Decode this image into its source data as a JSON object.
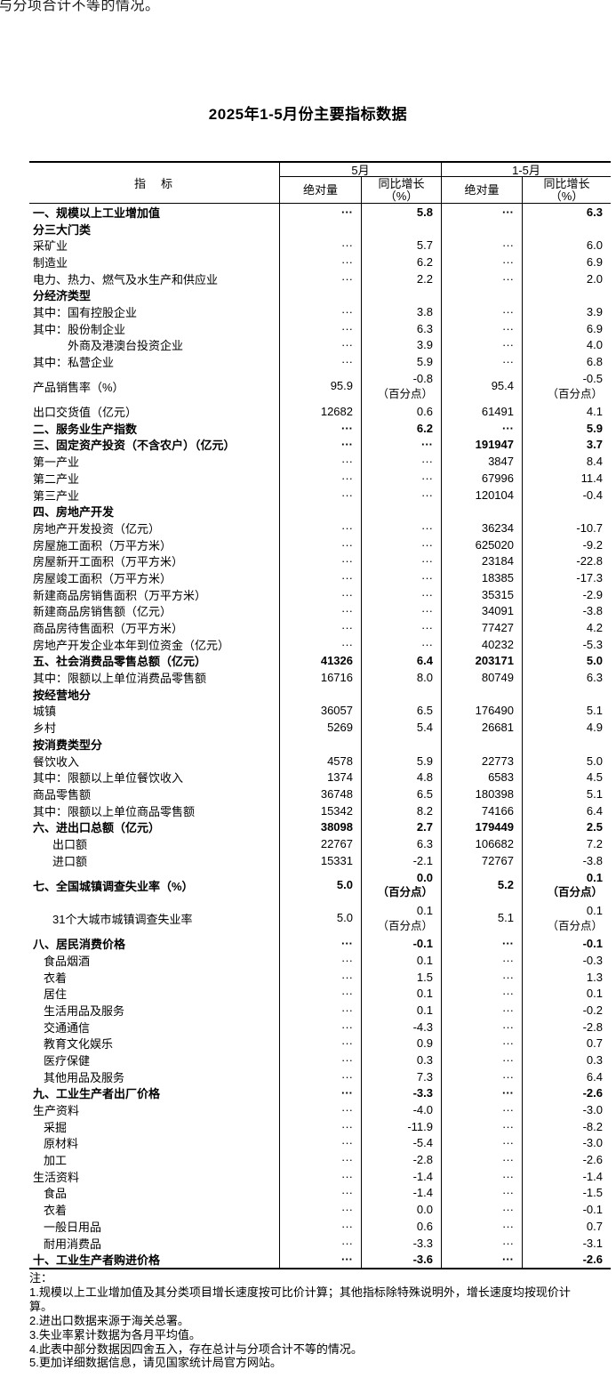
{
  "top_partial_text": "与分项合计不等的情况。",
  "title": "2025年1-5月份主要指标数据",
  "table": {
    "indicator_header": "指　标",
    "groups": [
      {
        "label": "5月"
      },
      {
        "label": "1-5月"
      }
    ],
    "sub_headers": [
      "绝对量",
      "同比增长\n（%）",
      "绝对量",
      "同比增长\n（%）"
    ],
    "unit_note": "（百分点）",
    "rows": [
      {
        "l": "一、规模以上工业增加值",
        "b": true,
        "v": [
          "···",
          "5.8",
          "···",
          "6.3"
        ]
      },
      {
        "l": "分三大门类",
        "b": true,
        "v": [
          "",
          "",
          "",
          ""
        ]
      },
      {
        "l": "采矿业",
        "v": [
          "···",
          "5.7",
          "···",
          "6.0"
        ]
      },
      {
        "l": "制造业",
        "v": [
          "···",
          "6.2",
          "···",
          "6.9"
        ]
      },
      {
        "l": "电力、热力、燃气及水生产和供应业",
        "v": [
          "···",
          "2.2",
          "···",
          "2.0"
        ]
      },
      {
        "l": "分经济类型",
        "b": true,
        "v": [
          "",
          "",
          "",
          ""
        ]
      },
      {
        "l": "其中：国有控股企业",
        "v": [
          "···",
          "3.8",
          "···",
          "3.9"
        ]
      },
      {
        "l": "其中：股份制企业",
        "v": [
          "···",
          "6.3",
          "···",
          "6.9"
        ]
      },
      {
        "l": "外商及港澳台投资企业",
        "i": 3,
        "v": [
          "···",
          "3.9",
          "···",
          "4.0"
        ]
      },
      {
        "l": "其中：私营企业",
        "v": [
          "···",
          "5.9",
          "···",
          "6.8"
        ]
      },
      {
        "l": "产品销售率（%）",
        "t": true,
        "v": [
          "95.9",
          "-0.8",
          "95.4",
          "-0.5"
        ]
      },
      {
        "l": "出口交货值（亿元）",
        "v": [
          "12682",
          "0.6",
          "61491",
          "4.1"
        ]
      },
      {
        "l": "二、服务业生产指数",
        "b": true,
        "v": [
          "···",
          "6.2",
          "···",
          "5.9"
        ]
      },
      {
        "l": "三、固定资产投资（不含农户）（亿元）",
        "b": true,
        "v": [
          "···",
          "···",
          "191947",
          "3.7"
        ]
      },
      {
        "l": "第一产业",
        "v": [
          "···",
          "···",
          "3847",
          "8.4"
        ]
      },
      {
        "l": "第二产业",
        "v": [
          "···",
          "···",
          "67996",
          "11.4"
        ]
      },
      {
        "l": "第三产业",
        "v": [
          "···",
          "···",
          "120104",
          "-0.4"
        ]
      },
      {
        "l": "四、房地产开发",
        "b": true,
        "v": [
          "",
          "",
          "",
          ""
        ]
      },
      {
        "l": "房地产开发投资（亿元）",
        "v": [
          "···",
          "···",
          "36234",
          "-10.7"
        ]
      },
      {
        "l": "房屋施工面积（万平方米）",
        "v": [
          "···",
          "···",
          "625020",
          "-9.2"
        ]
      },
      {
        "l": "房屋新开工面积（万平方米）",
        "v": [
          "···",
          "···",
          "23184",
          "-22.8"
        ]
      },
      {
        "l": "房屋竣工面积（万平方米）",
        "v": [
          "···",
          "···",
          "18385",
          "-17.3"
        ]
      },
      {
        "l": "新建商品房销售面积（万平方米）",
        "v": [
          "···",
          "···",
          "35315",
          "-2.9"
        ]
      },
      {
        "l": "新建商品房销售额（亿元）",
        "v": [
          "···",
          "···",
          "34091",
          "-3.8"
        ]
      },
      {
        "l": "商品房待售面积（万平方米）",
        "v": [
          "···",
          "···",
          "77427",
          "4.2"
        ]
      },
      {
        "l": "房地产开发企业本年到位资金（亿元）",
        "v": [
          "···",
          "···",
          "40232",
          "-5.3"
        ]
      },
      {
        "l": "五、社会消费品零售总额（亿元）",
        "b": true,
        "v": [
          "41326",
          "6.4",
          "203171",
          "5.0"
        ]
      },
      {
        "l": "其中：限额以上单位消费品零售额",
        "v": [
          "16716",
          "8.0",
          "80749",
          "6.3"
        ]
      },
      {
        "l": "按经营地分",
        "b": true,
        "v": [
          "",
          "",
          "",
          ""
        ]
      },
      {
        "l": "城镇",
        "v": [
          "36057",
          "6.5",
          "176490",
          "5.1"
        ]
      },
      {
        "l": "乡村",
        "v": [
          "5269",
          "5.4",
          "26681",
          "4.9"
        ]
      },
      {
        "l": "按消费类型分",
        "b": true,
        "v": [
          "",
          "",
          "",
          ""
        ]
      },
      {
        "l": "餐饮收入",
        "v": [
          "4578",
          "5.9",
          "22773",
          "5.0"
        ]
      },
      {
        "l": "其中：限额以上单位餐饮收入",
        "v": [
          "1374",
          "4.8",
          "6583",
          "4.5"
        ]
      },
      {
        "l": "商品零售额",
        "v": [
          "36748",
          "6.5",
          "180398",
          "5.1"
        ]
      },
      {
        "l": "其中：限额以上单位商品零售额",
        "v": [
          "15342",
          "8.2",
          "74166",
          "6.4"
        ]
      },
      {
        "l": "六、进出口总额（亿元）",
        "b": true,
        "v": [
          "38098",
          "2.7",
          "179449",
          "2.5"
        ]
      },
      {
        "l": "出口额",
        "i": 2,
        "v": [
          "22767",
          "6.3",
          "106682",
          "7.2"
        ]
      },
      {
        "l": "进口额",
        "i": 2,
        "v": [
          "15331",
          "-2.1",
          "72767",
          "-3.8"
        ]
      },
      {
        "l": "七、全国城镇调查失业率（%）",
        "b": true,
        "t": true,
        "v": [
          "5.0",
          "0.0",
          "5.2",
          "0.1"
        ]
      },
      {
        "l": "31个大城市城镇调查失业率",
        "i": 2,
        "t": true,
        "v": [
          "5.0",
          "0.1",
          "5.1",
          "0.1"
        ]
      },
      {
        "l": "八、居民消费价格",
        "b": true,
        "v": [
          "···",
          "-0.1",
          "···",
          "-0.1"
        ]
      },
      {
        "l": "食品烟酒",
        "i": 1,
        "v": [
          "···",
          "0.1",
          "···",
          "-0.3"
        ]
      },
      {
        "l": "衣着",
        "i": 1,
        "v": [
          "···",
          "1.5",
          "···",
          "1.3"
        ]
      },
      {
        "l": "居住",
        "i": 1,
        "v": [
          "···",
          "0.1",
          "···",
          "0.1"
        ]
      },
      {
        "l": "生活用品及服务",
        "i": 1,
        "v": [
          "···",
          "0.1",
          "···",
          "-0.2"
        ]
      },
      {
        "l": "交通通信",
        "i": 1,
        "v": [
          "···",
          "-4.3",
          "···",
          "-2.8"
        ]
      },
      {
        "l": "教育文化娱乐",
        "i": 1,
        "v": [
          "···",
          "0.9",
          "···",
          "0.7"
        ]
      },
      {
        "l": "医疗保健",
        "i": 1,
        "v": [
          "···",
          "0.3",
          "···",
          "0.3"
        ]
      },
      {
        "l": "其他用品及服务",
        "i": 1,
        "v": [
          "···",
          "7.3",
          "···",
          "6.4"
        ]
      },
      {
        "l": "九、工业生产者出厂价格",
        "b": true,
        "v": [
          "···",
          "-3.3",
          "···",
          "-2.6"
        ]
      },
      {
        "l": "生产资料",
        "v": [
          "···",
          "-4.0",
          "···",
          "-3.0"
        ]
      },
      {
        "l": "采掘",
        "i": 1,
        "v": [
          "···",
          "-11.9",
          "···",
          "-8.2"
        ]
      },
      {
        "l": "原材料",
        "i": 1,
        "v": [
          "···",
          "-5.4",
          "···",
          "-3.0"
        ]
      },
      {
        "l": "加工",
        "i": 1,
        "v": [
          "···",
          "-2.8",
          "···",
          "-2.6"
        ]
      },
      {
        "l": "生活资料",
        "v": [
          "···",
          "-1.4",
          "···",
          "-1.4"
        ]
      },
      {
        "l": "食品",
        "i": 1,
        "v": [
          "···",
          "-1.4",
          "···",
          "-1.5"
        ]
      },
      {
        "l": "衣着",
        "i": 1,
        "v": [
          "···",
          "0.0",
          "···",
          "-0.1"
        ]
      },
      {
        "l": "一般日用品",
        "i": 1,
        "v": [
          "···",
          "0.6",
          "···",
          "0.7"
        ]
      },
      {
        "l": "耐用消费品",
        "i": 1,
        "v": [
          "···",
          "-3.3",
          "···",
          "-3.1"
        ]
      },
      {
        "l": "十、工业生产者购进价格",
        "b": true,
        "v": [
          "···",
          "-3.6",
          "···",
          "-2.6"
        ]
      }
    ]
  },
  "notes": {
    "lines": [
      "注：",
      "1.规模以上工业增加值及其分类项目增长速度按可比价计算；其他指标除特殊说明外，增长速度均按现价计",
      "算。",
      "2.进出口数据来源于海关总署。",
      "3.失业率累计数据为各月平均值。",
      "4.此表中部分数据因四舍五入，存在总计与分项合计不等的情况。",
      "5.更加详细数据信息，请见国家统计局官方网站。"
    ]
  }
}
